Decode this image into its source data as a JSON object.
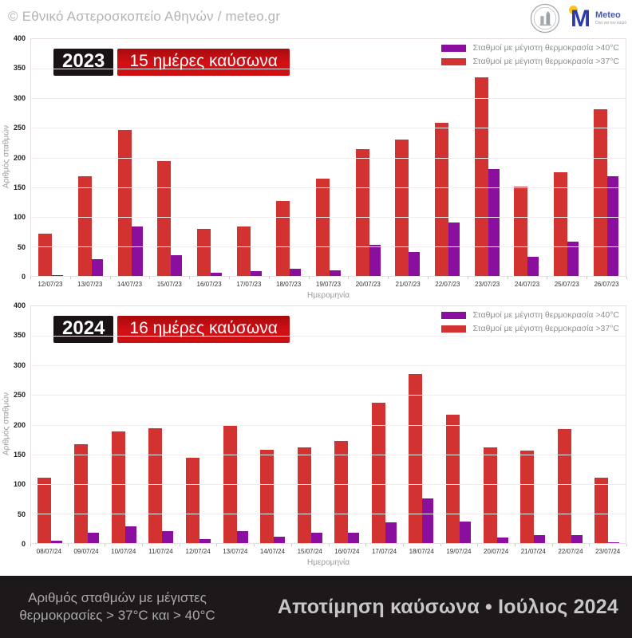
{
  "header": {
    "copyright": "© Εθνικό Αστεροσκοπείο Αθηνών / meteo.gr",
    "meteo_logo_text": "Meteo",
    "meteo_logo_tagline": "Όλα για τον καιρό"
  },
  "legend": {
    "gt40": "Σταθμοί με μέγιστη θερμοκρασία >40°C",
    "gt37": "Σταθμοί με μέγιστη θερμοκρασία >37°C"
  },
  "axis": {
    "ylabel": "Αριθμός σταθμών",
    "xlabel": "Ημερομηνία",
    "yticks": [
      400,
      350,
      300,
      250,
      200,
      150,
      100,
      50,
      0
    ]
  },
  "colors": {
    "red": "#d23230",
    "purple": "#8b0f9f",
    "badge_black": "#1a1316",
    "badge_red": "#cc0f12",
    "footer_bg": "#1d181a"
  },
  "chart_data": [
    {
      "type": "bar",
      "year": "2023",
      "subtitle": "15 ημέρες καύσωνα",
      "title": "2023 — 15 ημέρες καύσωνα",
      "xlabel": "Ημερομηνία",
      "ylabel": "Αριθμός σταθμών",
      "ylim": [
        0,
        400
      ],
      "grid": true,
      "legend_position": "top-right",
      "categories": [
        "12/07/23",
        "13/07/23",
        "14/07/23",
        "15/07/23",
        "16/07/23",
        "17/07/23",
        "18/07/23",
        "19/07/23",
        "20/07/23",
        "21/07/23",
        "22/07/23",
        "23/07/23",
        "24/07/23",
        "25/07/23",
        "26/07/23"
      ],
      "series": [
        {
          "name": "Σταθμοί με μέγιστη θερμοκρασία >37°C",
          "color": "#d23230",
          "values": [
            72,
            169,
            247,
            194,
            80,
            84,
            126,
            165,
            214,
            230,
            259,
            335,
            151,
            175,
            282
          ]
        },
        {
          "name": "Σταθμοί με μέγιστη θερμοκρασία >40°C",
          "color": "#8b0f9f",
          "values": [
            2,
            28,
            83,
            35,
            5,
            8,
            12,
            10,
            52,
            40,
            90,
            180,
            33,
            58,
            168
          ]
        }
      ]
    },
    {
      "type": "bar",
      "year": "2024",
      "subtitle": "16 ημέρες καύσωνα",
      "title": "2024 — 16 ημέρες καύσωνα",
      "xlabel": "Ημερομηνία",
      "ylabel": "Αριθμός σταθμών",
      "ylim": [
        0,
        400
      ],
      "grid": true,
      "legend_position": "top-right",
      "categories": [
        "08/07/24",
        "09/07/24",
        "10/07/24",
        "11/07/24",
        "12/07/24",
        "13/07/24",
        "14/07/24",
        "15/07/24",
        "16/07/24",
        "17/07/24",
        "18/07/24",
        "19/07/24",
        "20/07/24",
        "21/07/24",
        "22/07/24",
        "23/07/24"
      ],
      "series": [
        {
          "name": "Σταθμοί με μέγιστη θερμοκρασία >37°C",
          "color": "#d23230",
          "values": [
            110,
            167,
            189,
            194,
            144,
            198,
            158,
            162,
            172,
            237,
            285,
            217,
            161,
            156,
            192,
            111
          ]
        },
        {
          "name": "Σταθμοί με μέγιστη θερμοκρασία >40°C",
          "color": "#8b0f9f",
          "values": [
            4,
            17,
            28,
            20,
            7,
            20,
            11,
            17,
            18,
            35,
            75,
            37,
            9,
            14,
            14,
            2
          ]
        }
      ]
    }
  ],
  "footer": {
    "left_line1": "Αριθμός σταθμών με μέγιστες",
    "left_line2": "θερμοκρασίες > 37°C και > 40°C",
    "right_title": "Αποτίμηση καύσωνα • Ιούλιος 2024"
  }
}
